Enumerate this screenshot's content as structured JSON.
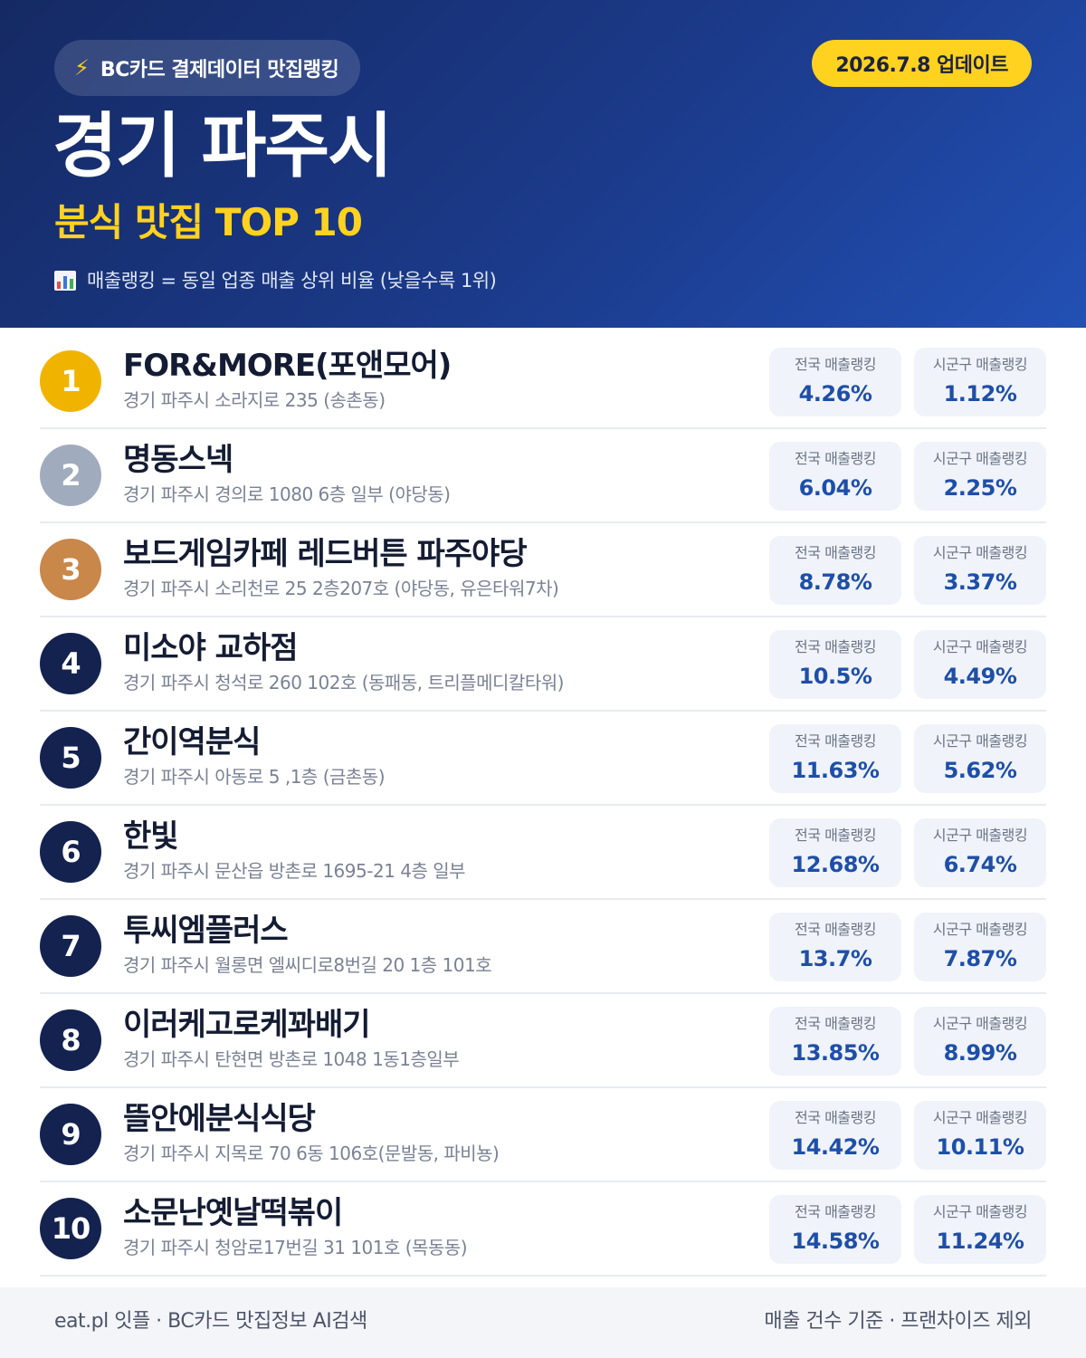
{
  "header": {
    "brand_icon": "lightning-icon",
    "brand": "BC카드 결제데이터 맛집랭킹",
    "update": "2026.7.8 업데이트",
    "city": "경기 파주시",
    "category": "분식 맛집 TOP 10",
    "legend_icon": "bar-chart-icon",
    "legend": "매출랭킹 = 동일 업종 매출 상위 비율 (낮을수록 1위)"
  },
  "labels": {
    "national": "전국 매출랭킹",
    "local": "시군구 매출랭킹"
  },
  "colors": {
    "gold": "#f0b400",
    "silver": "#a1abbe",
    "bronze": "#c9874a",
    "navy": "#14224f",
    "accent_yellow": "#ffd21f",
    "value_blue": "#1e4fa8"
  },
  "items": [
    {
      "rank": "1",
      "name": "FOR&MORE(포앤모어)",
      "address": "경기 파주시 소라지로 235 (송촌동)",
      "national": "4.26%",
      "local": "1.12%"
    },
    {
      "rank": "2",
      "name": "명동스넥",
      "address": "경기 파주시 경의로 1080 6층 일부 (야당동)",
      "national": "6.04%",
      "local": "2.25%"
    },
    {
      "rank": "3",
      "name": "보드게임카페 레드버튼 파주야당",
      "address": "경기 파주시 소리천로 25 2층207호 (야당동, 유은타워7차)",
      "national": "8.78%",
      "local": "3.37%"
    },
    {
      "rank": "4",
      "name": "미소야 교하점",
      "address": "경기 파주시 청석로 260 102호 (동패동, 트리플메디칼타워)",
      "national": "10.5%",
      "local": "4.49%"
    },
    {
      "rank": "5",
      "name": "간이역분식",
      "address": "경기 파주시 아동로 5 ,1층 (금촌동)",
      "national": "11.63%",
      "local": "5.62%"
    },
    {
      "rank": "6",
      "name": "한빛",
      "address": "경기 파주시 문산읍 방촌로 1695-21 4층 일부",
      "national": "12.68%",
      "local": "6.74%"
    },
    {
      "rank": "7",
      "name": "투씨엠플러스",
      "address": "경기 파주시 월롱면 엘씨디로8번길 20 1층 101호",
      "national": "13.7%",
      "local": "7.87%"
    },
    {
      "rank": "8",
      "name": "이러케고로케꽈배기",
      "address": "경기 파주시 탄현면 방촌로 1048 1동1층일부",
      "national": "13.85%",
      "local": "8.99%"
    },
    {
      "rank": "9",
      "name": "뜰안에분식식당",
      "address": "경기 파주시 지목로 70 6동 106호(문발동, 파비뇽)",
      "national": "14.42%",
      "local": "10.11%"
    },
    {
      "rank": "10",
      "name": "소문난옛날떡볶이",
      "address": "경기 파주시 청암로17번길 31 101호 (목동동)",
      "national": "14.58%",
      "local": "11.24%"
    }
  ],
  "footer": {
    "left": "eat.pl 잇플 · BC카드 맛집정보 AI검색",
    "right": "매출 건수 기준 · 프랜차이즈 제외"
  }
}
